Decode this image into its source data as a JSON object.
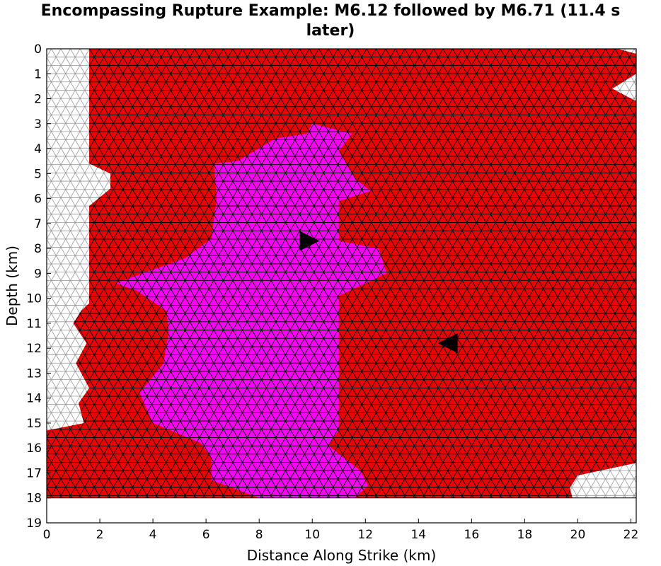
{
  "chart_data": {
    "type": "heatmap",
    "title": "Encompassing Rupture Example: M6.12 followed by M6.71 (11.4 s later)",
    "title_lines": [
      "Encompassing Rupture Example: M6.12 followed by M6.71 (11.4 s",
      "later)"
    ],
    "xlabel": "Distance Along Strike (km)",
    "ylabel": "Depth (km)",
    "xlim": [
      0,
      22.2
    ],
    "ylim": [
      19,
      0
    ],
    "xticks": [
      0,
      2,
      4,
      6,
      8,
      10,
      12,
      14,
      16,
      18,
      20,
      22
    ],
    "yticks": [
      0,
      1,
      2,
      3,
      4,
      5,
      6,
      7,
      8,
      9,
      10,
      11,
      12,
      13,
      14,
      15,
      16,
      17,
      18,
      19
    ],
    "fault_bottom_depth": 18,
    "colors": {
      "first_event": "#ff00ff",
      "second_event": "#ee0000",
      "unruptured": "#ffffff",
      "mesh_line_ruptured": "#000000",
      "mesh_line_unruptured": "#999999",
      "hypocenter_marker": "#000000"
    },
    "events": [
      {
        "magnitude": "M6.12",
        "order": 1,
        "hypocenter": {
          "x": 9.9,
          "depth": 7.7,
          "direction": "right"
        },
        "rupture_region_x_depth": [
          [
            10.0,
            3.0
          ],
          [
            11.5,
            3.4
          ],
          [
            11.0,
            4.1
          ],
          [
            11.6,
            5.2
          ],
          [
            12.2,
            5.7
          ],
          [
            11.0,
            6.1
          ],
          [
            11.0,
            7.7
          ],
          [
            12.5,
            8.0
          ],
          [
            12.8,
            9.0
          ],
          [
            11.0,
            9.9
          ],
          [
            11.0,
            15.3
          ],
          [
            10.6,
            15.9
          ],
          [
            11.2,
            16.4
          ],
          [
            11.8,
            16.9
          ],
          [
            12.1,
            17.5
          ],
          [
            11.6,
            18.0
          ],
          [
            8.0,
            18.0
          ],
          [
            7.0,
            17.6
          ],
          [
            6.2,
            17.3
          ],
          [
            6.2,
            16.4
          ],
          [
            5.8,
            15.8
          ],
          [
            4.0,
            15.0
          ],
          [
            3.5,
            13.8
          ],
          [
            4.4,
            12.6
          ],
          [
            4.6,
            11.3
          ],
          [
            4.5,
            10.5
          ],
          [
            3.4,
            9.7
          ],
          [
            2.6,
            9.4
          ],
          [
            3.6,
            9.0
          ],
          [
            5.2,
            8.4
          ],
          [
            6.2,
            7.6
          ],
          [
            6.4,
            6.0
          ],
          [
            6.3,
            4.6
          ],
          [
            7.2,
            4.5
          ],
          [
            8.6,
            3.6
          ],
          [
            9.8,
            3.4
          ]
        ]
      },
      {
        "magnitude": "M6.71",
        "order": 2,
        "delay_s": 11.4,
        "hypocenter": {
          "x": 15.1,
          "depth": 11.8,
          "direction": "left"
        },
        "rupture_region_x_depth": [
          [
            1.6,
            0.0
          ],
          [
            21.5,
            0.0
          ],
          [
            22.2,
            0.2
          ],
          [
            22.2,
            1.0
          ],
          [
            21.3,
            1.6
          ],
          [
            22.2,
            2.1
          ],
          [
            22.2,
            16.6
          ],
          [
            20.0,
            17.1
          ],
          [
            19.7,
            17.6
          ],
          [
            19.8,
            18.0
          ],
          [
            0.0,
            18.0
          ],
          [
            0.0,
            15.3
          ],
          [
            1.4,
            15.0
          ],
          [
            1.2,
            14.2
          ],
          [
            1.6,
            13.6
          ],
          [
            1.1,
            12.6
          ],
          [
            1.5,
            11.8
          ],
          [
            1.0,
            11.0
          ],
          [
            1.3,
            10.5
          ],
          [
            1.6,
            10.2
          ],
          [
            1.6,
            6.3
          ],
          [
            2.4,
            5.6
          ],
          [
            2.4,
            5.0
          ],
          [
            1.6,
            4.6
          ]
        ]
      }
    ]
  }
}
